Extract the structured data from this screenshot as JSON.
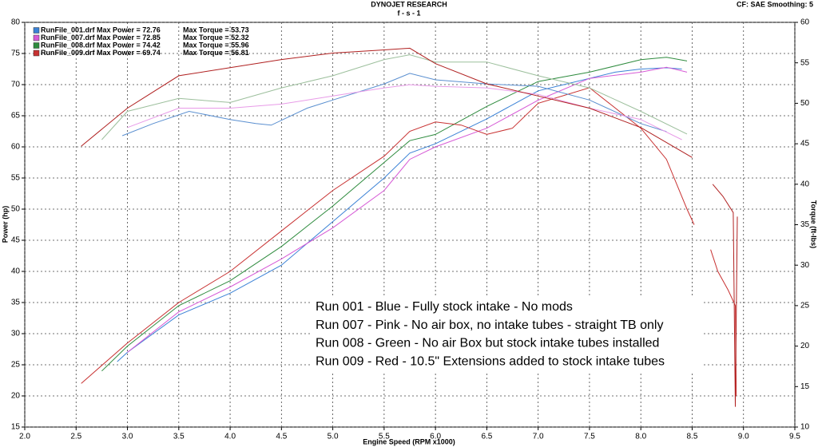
{
  "chart_data": {
    "type": "line",
    "title": "DYNOJET RESEARCH",
    "subtitle": "f - s - 1",
    "info": "CF: SAE  Smoothing: 5",
    "xlabel": "Engine Speed (RPM x1000)",
    "ylabel": "Power (hp)",
    "y2label": "Torque (ft-lbs)",
    "xlim": [
      2,
      9.5
    ],
    "xticks": [
      {
        "value": 2,
        "label": "2.0"
      },
      {
        "value": 2.5,
        "label": "2.5"
      },
      {
        "value": 3,
        "label": "3.0"
      },
      {
        "value": 3.5,
        "label": "3.5"
      },
      {
        "value": 4,
        "label": "4.0"
      },
      {
        "value": 4.5,
        "label": "4.5"
      },
      {
        "value": 5,
        "label": "5.0"
      },
      {
        "value": 5.5,
        "label": "5.5"
      },
      {
        "value": 6,
        "label": "6.0"
      },
      {
        "value": 6.5,
        "label": "6.5"
      },
      {
        "value": 7,
        "label": "7.0"
      },
      {
        "value": 7.5,
        "label": "7.5"
      },
      {
        "value": 8,
        "label": "8.0"
      },
      {
        "value": 8.5,
        "label": "8.5"
      },
      {
        "value": 9,
        "label": "9.0"
      },
      {
        "value": 9.5,
        "label": "9.5"
      }
    ],
    "ylim": [
      15,
      80
    ],
    "yticks": [
      15,
      20,
      25,
      30,
      35,
      40,
      45,
      50,
      55,
      60,
      65,
      70,
      75,
      80
    ],
    "y2lim": [
      10,
      60
    ],
    "y2ticks": [
      10,
      15,
      20,
      25,
      30,
      35,
      40,
      45,
      50,
      55,
      60
    ],
    "grid": true,
    "legend": [
      {
        "label": "RunFile_001.drf Max Power = 72.76",
        "torque_label": "Max Torque = 53.73",
        "color": "#3b82d6"
      },
      {
        "label": "RunFile_007.drf Max Power = 72.85",
        "torque_label": "Max Torque = 52.32",
        "color": "#d65ad6"
      },
      {
        "label": "RunFile_008.drf Max Power = 74.42",
        "torque_label": "Max Torque = 55.96",
        "color": "#2e8b3e"
      },
      {
        "label": "RunFile_009.drf Max Power = 69.74",
        "torque_label": "Max Torque = 56.81",
        "color": "#c83232"
      }
    ],
    "annotations": [
      "Run 001 - Blue - Fully stock intake - No mods",
      "Run 007 - Pink - No air box, no  intake tubes - straight TB only",
      "Run 008 - Green - No air Box but stock intake tubes installed",
      "Run 009 - Red - 10.5\" Extensions added to stock intake tubes"
    ],
    "series": [
      {
        "color": "#3b82d6",
        "x": [
          2.9,
          3,
          3.5,
          4,
          4.5,
          5,
          5.5,
          5.75,
          6,
          6.5,
          7,
          7.25,
          7.5,
          7.75,
          8,
          8.25,
          8.4
        ],
        "values": [
          25.5,
          27,
          33,
          36.5,
          41,
          48,
          55,
          59,
          60.5,
          64.5,
          69,
          70,
          71,
          72,
          72.5,
          72.7,
          72.5
        ]
      },
      {
        "color": "#d65ad6",
        "x": [
          3,
          3.5,
          4,
          4.5,
          5,
          5.5,
          5.75,
          6,
          6.5,
          7,
          7.5,
          8,
          8.25,
          8.45
        ],
        "values": [
          27,
          33.5,
          37.5,
          42,
          47,
          53,
          58,
          60,
          63,
          67.5,
          71,
          72,
          72.8,
          72
        ]
      },
      {
        "color": "#2e8b3e",
        "x": [
          2.75,
          3,
          3.5,
          4,
          4.5,
          5,
          5.5,
          5.75,
          6,
          6.5,
          7,
          7.5,
          8,
          8.25,
          8.45
        ],
        "values": [
          24,
          28,
          34.5,
          38.5,
          44,
          50.5,
          57.5,
          61,
          62,
          66.5,
          70.5,
          72,
          74,
          74.4,
          73.8
        ]
      },
      {
        "color": "#c83232",
        "x": [
          2.55,
          3,
          3.5,
          4,
          4.5,
          5,
          5.5,
          5.75,
          6,
          6.25,
          6.5,
          6.75,
          7,
          7.5,
          8,
          8.25,
          8.45,
          8.52,
          8.6,
          8.68,
          8.75,
          8.85,
          8.92,
          8.93
        ],
        "values": [
          22,
          28.5,
          35,
          40,
          46.5,
          53,
          58.5,
          62.5,
          64,
          63.5,
          62,
          63,
          67,
          69.5,
          63,
          58,
          50,
          47.5,
          null,
          43.5,
          40,
          37,
          34.5,
          20
        ]
      },
      {
        "color": "#5a8fd0",
        "axis": "y2",
        "x": [
          2.95,
          3.25,
          3.6,
          4,
          4.25,
          4.4,
          4.75,
          5,
          5.5,
          5.75,
          6,
          6.5,
          7,
          7.5,
          8,
          8.25
        ],
        "values": [
          46,
          47.5,
          49,
          48,
          47.5,
          47.3,
          49.4,
          50.4,
          52.4,
          53.7,
          52.9,
          52.4,
          52.1,
          50.4,
          47.5,
          46.5
        ]
      },
      {
        "color": "#e89be8",
        "axis": "y2",
        "x": [
          3,
          3.5,
          4,
          4.5,
          5,
          5.5,
          5.75,
          6,
          6.5,
          7,
          7.5,
          8,
          8.4
        ],
        "values": [
          47,
          49.4,
          49.4,
          49.9,
          50.9,
          51.9,
          52.3,
          52.1,
          51.9,
          51.1,
          49.4,
          48,
          45.5
        ]
      },
      {
        "color": "#9cbf9c",
        "axis": "y2",
        "x": [
          2.75,
          3,
          3.5,
          4,
          4.5,
          5,
          5.5,
          5.75,
          6,
          6.5,
          7,
          7.5,
          8,
          8.45
        ],
        "values": [
          45.5,
          49,
          50.6,
          50.1,
          51.9,
          53.4,
          55.4,
          56,
          55.1,
          55.1,
          53.4,
          51.9,
          49,
          46.2
        ]
      },
      {
        "color": "#b02020",
        "axis": "y2",
        "x": [
          2.55,
          3,
          3.5,
          4,
          4.5,
          5,
          5.5,
          5.75,
          6,
          6.5,
          7,
          7.5,
          8,
          8.5,
          8.6,
          8.7,
          8.8,
          8.9,
          8.92,
          8.94
        ],
        "values": [
          44.7,
          49.4,
          53.4,
          54.4,
          55.4,
          56.2,
          56.6,
          56.8,
          54.9,
          52.4,
          50.9,
          49.4,
          47,
          43.3,
          null,
          40,
          38.5,
          36.5,
          12.5,
          36
        ]
      }
    ]
  }
}
